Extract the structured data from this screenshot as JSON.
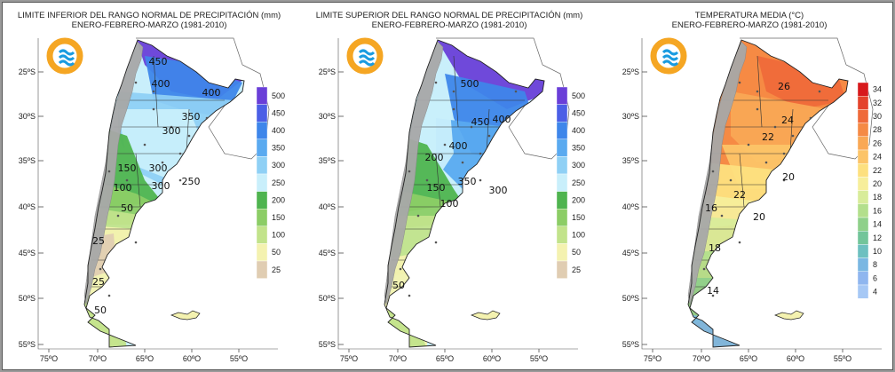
{
  "maps": [
    {
      "title": "LIMITE INFERIOR DEL RANGO NORMAL DE PRECIPITACIÓN (mm)",
      "subtitle": "ENERO-FEBRERO-MARZO (1981-2010)",
      "colorbar": {
        "ticks": [
          "500",
          "450",
          "400",
          "350",
          "300",
          "250",
          "200",
          "150",
          "100",
          "50",
          "25"
        ],
        "colors": [
          "#6a3fd8",
          "#4b5fe6",
          "#3e86ea",
          "#5aaaf0",
          "#8fd0f5",
          "#c9effb",
          "#4fb44f",
          "#8ccd66",
          "#c2e38b",
          "#f4f2b0",
          "#e0cdb2"
        ]
      },
      "contours": [
        "450",
        "400",
        "400",
        "350",
        "300",
        "300",
        "250",
        "150",
        "300",
        "100",
        "50",
        "25",
        "25",
        "50"
      ]
    },
    {
      "title": "LIMITE SUPERIOR DEL RANGO NORMAL DE PRECIPITACIÓN (mm)",
      "subtitle": "ENERO-FEBRERO-MARZO (1981-2010)",
      "colorbar": {
        "ticks": [
          "500",
          "450",
          "400",
          "350",
          "300",
          "250",
          "200",
          "150",
          "100",
          "50",
          "25"
        ],
        "colors": [
          "#6a3fd8",
          "#4b5fe6",
          "#3e86ea",
          "#5aaaf0",
          "#8fd0f5",
          "#c9effb",
          "#4fb44f",
          "#8ccd66",
          "#c2e38b",
          "#f4f2b0",
          "#e0cdb2"
        ]
      },
      "contours": [
        "500",
        "400",
        "450",
        "400",
        "200",
        "350",
        "300",
        "150",
        "100",
        "50"
      ]
    },
    {
      "title": "TEMPERATURA MEDIA (°C)",
      "subtitle": "ENERO-FEBRERO-MARZO (1981-2010)",
      "colorbar": {
        "ticks": [
          "34",
          "32",
          "30",
          "28",
          "26",
          "24",
          "22",
          "20",
          "18",
          "16",
          "14",
          "12",
          "10",
          "8",
          "6",
          "4"
        ],
        "colors": [
          "#d7191c",
          "#e4432c",
          "#ef6a3a",
          "#f58a45",
          "#f9a855",
          "#fcc468",
          "#fde07f",
          "#f7ee9b",
          "#d8ec9a",
          "#b3df8c",
          "#8fd08a",
          "#72c59a",
          "#6dc0c0",
          "#7ab7e2",
          "#8fb6ef",
          "#a6c8f5"
        ]
      },
      "contours": [
        "26",
        "24",
        "22",
        "20",
        "22",
        "20",
        "16",
        "18",
        "14"
      ]
    }
  ],
  "axes": {
    "lat_labels": [
      "25ºS",
      "30ºS",
      "35ºS",
      "40ºS",
      "45ºS",
      "50ºS",
      "55ºS"
    ],
    "lon_labels": [
      "75ºO",
      "70ºO",
      "65ºO",
      "60ºO",
      "55ºO"
    ]
  }
}
